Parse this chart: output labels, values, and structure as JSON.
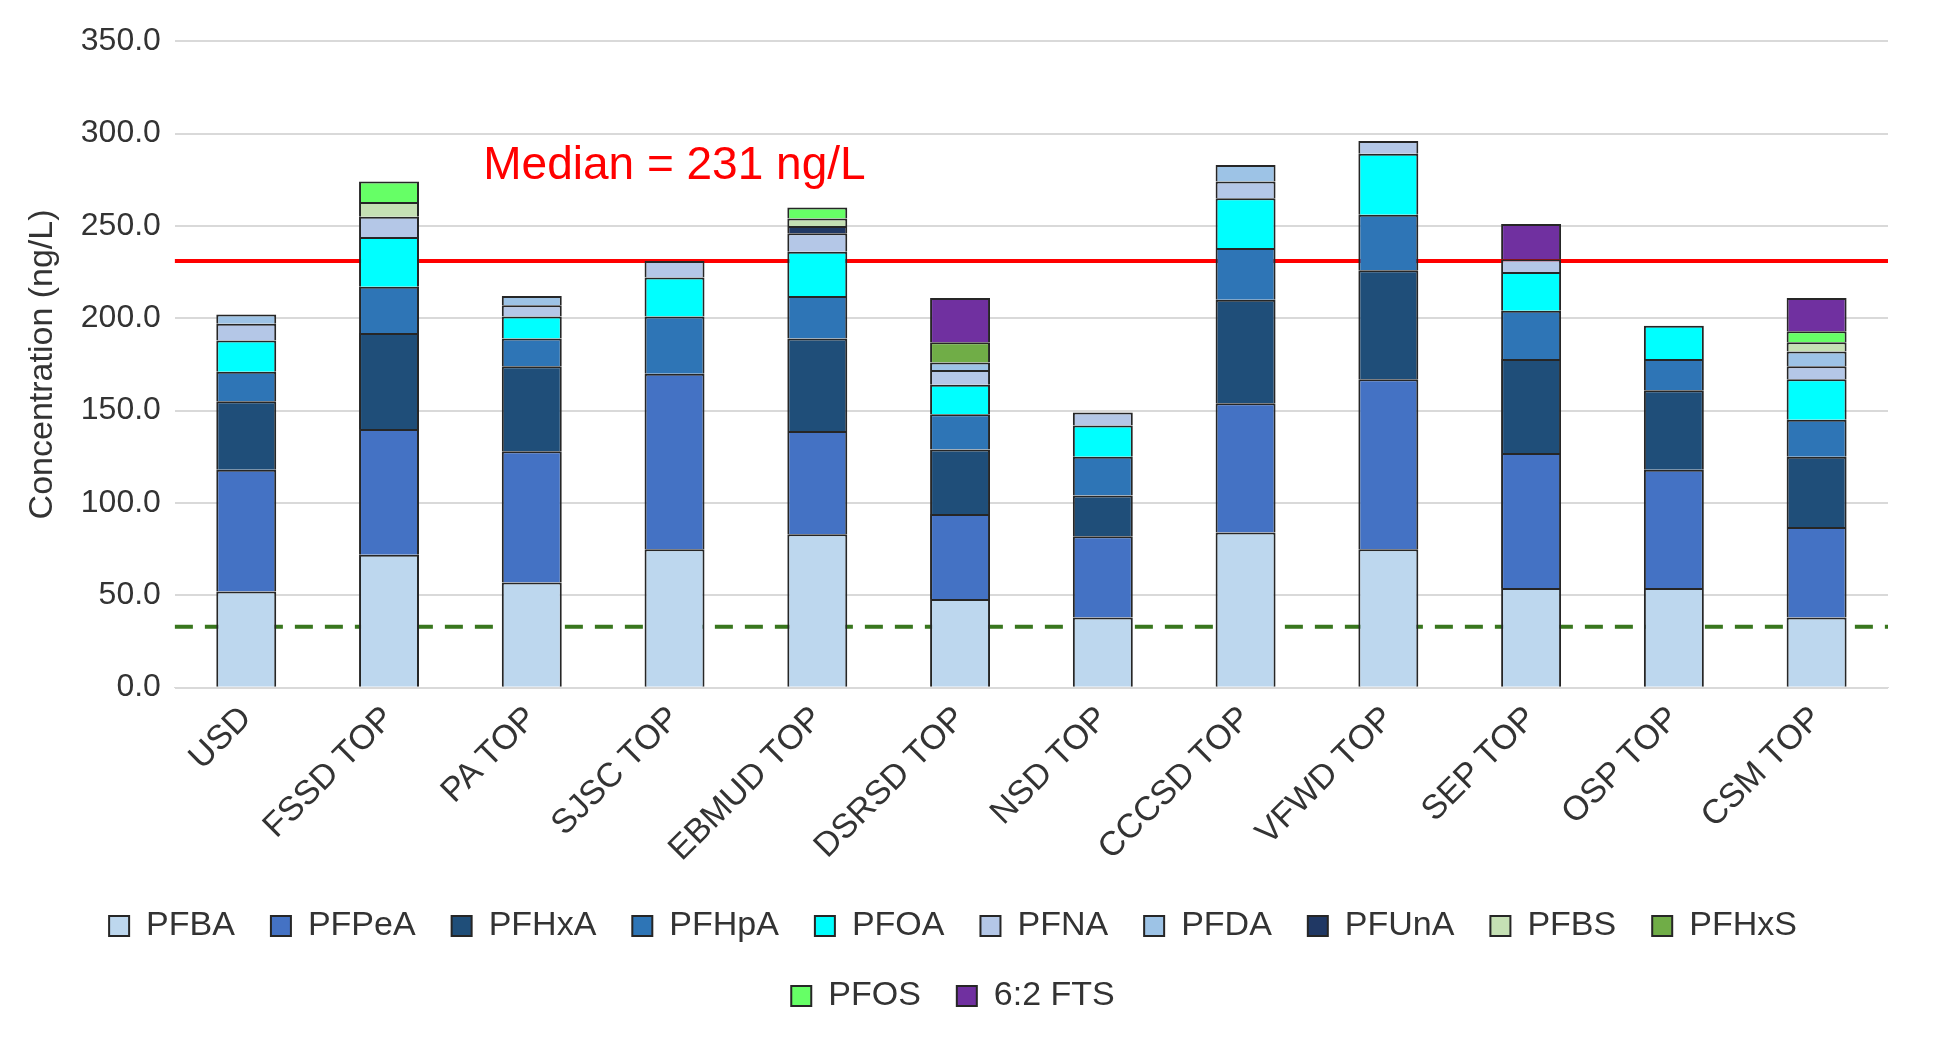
{
  "chart_data": {
    "type": "bar",
    "stacked": true,
    "ylabel": "Concentration (ng/L)",
    "categories": [
      "USD",
      "FSSD TOP",
      "PA TOP",
      "SJSC TOP",
      "EBMUD TOP",
      "DSRSD TOP",
      "NSD TOP",
      "CCCSD TOP",
      "VFWD TOP",
      "SEP TOP",
      "OSP TOP",
      "CSM TOP"
    ],
    "series": [
      {
        "name": "PFBA",
        "color": "#bdd7ee",
        "values": [
          52,
          72,
          57,
          75,
          83,
          48,
          38,
          84,
          75,
          54,
          54,
          38
        ]
      },
      {
        "name": "PFPeA",
        "color": "#4472c4",
        "values": [
          66,
          68,
          71,
          95,
          56,
          46,
          44,
          70,
          92,
          73,
          64,
          49
        ]
      },
      {
        "name": "PFHxA",
        "color": "#1f4e79",
        "values": [
          37,
          52,
          46,
          null,
          50,
          35,
          22,
          56,
          59,
          51,
          43,
          38
        ]
      },
      {
        "name": "PFHpA",
        "color": "#2e75b6",
        "values": [
          16,
          25,
          15,
          31,
          23,
          19,
          21,
          28,
          30,
          26,
          17,
          20
        ]
      },
      {
        "name": "PFOA",
        "color": "#00ffff",
        "values": [
          17,
          27,
          12,
          21,
          24,
          16,
          17,
          27,
          33,
          21,
          18,
          22
        ]
      },
      {
        "name": "PFNA",
        "color": "#b4c7e7",
        "values": [
          9,
          11,
          6,
          9,
          10,
          8,
          7,
          9,
          7,
          7,
          null,
          7
        ]
      },
      {
        "name": "PFDA",
        "color": "#9dc3e6",
        "values": [
          5,
          null,
          5,
          null,
          null,
          4,
          null,
          9,
          null,
          null,
          null,
          8
        ]
      },
      {
        "name": "PFUnA",
        "color": "#203864",
        "values": [
          null,
          null,
          null,
          null,
          4,
          null,
          null,
          null,
          null,
          null,
          null,
          null
        ]
      },
      {
        "name": "PFBS",
        "color": "#c5e0b4",
        "values": [
          null,
          8,
          null,
          null,
          4,
          null,
          null,
          null,
          null,
          null,
          null,
          5
        ]
      },
      {
        "name": "PFHxS",
        "color": "#70ad47",
        "values": [
          null,
          null,
          null,
          null,
          null,
          11,
          null,
          null,
          null,
          null,
          null,
          null
        ]
      },
      {
        "name": "PFOS",
        "color": "#66ff66",
        "values": [
          null,
          11,
          null,
          null,
          6,
          null,
          null,
          null,
          null,
          null,
          null,
          6
        ]
      },
      {
        "name": "6:2 FTS",
        "color": "#7030a0",
        "values": [
          null,
          null,
          null,
          null,
          null,
          24,
          null,
          null,
          null,
          19,
          null,
          18
        ]
      }
    ],
    "ylim": [
      0,
      350
    ],
    "yticks": [
      {
        "value": 0,
        "label": "0.0"
      },
      {
        "value": 50,
        "label": "50.0"
      },
      {
        "value": 100,
        "label": "100.0"
      },
      {
        "value": 150,
        "label": "150.0"
      },
      {
        "value": 200,
        "label": "200.0"
      },
      {
        "value": 250,
        "label": "250.0"
      },
      {
        "value": 300,
        "label": "300.0"
      },
      {
        "value": 350,
        "label": "350.0"
      }
    ],
    "ref_lines": [
      {
        "axis": "y",
        "value": 231,
        "label": "Median = 231 ng/L",
        "color": "#ff0000",
        "line_style": "solid"
      },
      {
        "axis": "y",
        "value": 33,
        "color": "#38761d",
        "line_style": "dashed"
      }
    ],
    "grid": "y",
    "legend": "bottom"
  }
}
